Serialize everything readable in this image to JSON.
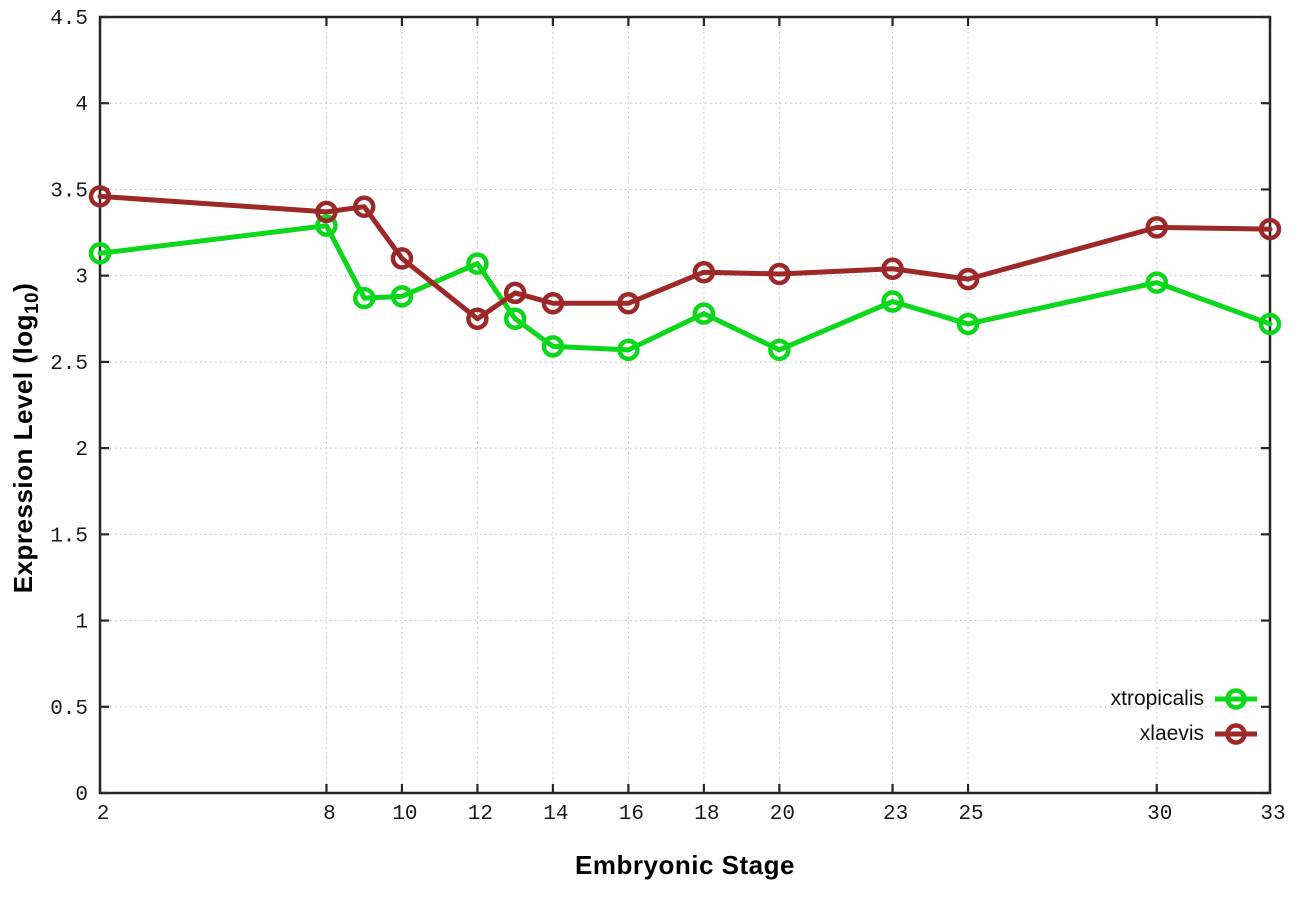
{
  "figure": {
    "background": "#ffffff",
    "axis_color": "#262626",
    "grid_color": "#bdbdbd",
    "tick_label_color": "#1a1a1a"
  },
  "chart_data": {
    "type": "line",
    "x": [
      2,
      8,
      9,
      10,
      12,
      13,
      14,
      16,
      18,
      20,
      23,
      25,
      30,
      33
    ],
    "series": [
      {
        "name": "xtropicalis",
        "color": "#0bd71b",
        "values": [
          3.13,
          3.29,
          2.87,
          2.88,
          3.07,
          2.75,
          2.59,
          2.57,
          2.78,
          2.57,
          2.85,
          2.72,
          2.96,
          2.72
        ]
      },
      {
        "name": "xlaevis",
        "color": "#9d2828",
        "values": [
          3.46,
          3.37,
          3.4,
          3.1,
          2.75,
          2.9,
          2.84,
          2.84,
          3.02,
          3.01,
          3.04,
          2.98,
          3.28,
          3.27
        ]
      }
    ],
    "title": "",
    "xlabel": "Embryonic Stage",
    "ylabel": "Expression Level (log10)",
    "ylabel_prefix": "Expression Level (log",
    "ylabel_sub": "10",
    "ylabel_suffix": ")",
    "xlim": [
      2,
      33
    ],
    "ylim": [
      0,
      4.5
    ],
    "xticks": [
      "2",
      "8",
      "10",
      "12",
      "14",
      "16",
      "18",
      "20",
      "23",
      "25",
      "30",
      "33"
    ],
    "yticks": [
      "0",
      "0.5",
      "1",
      "1.5",
      "2",
      "2.5",
      "3",
      "3.5",
      "4",
      "4.5"
    ],
    "grid": true,
    "legend_position": "bottom-right",
    "marker": "open-circle"
  }
}
